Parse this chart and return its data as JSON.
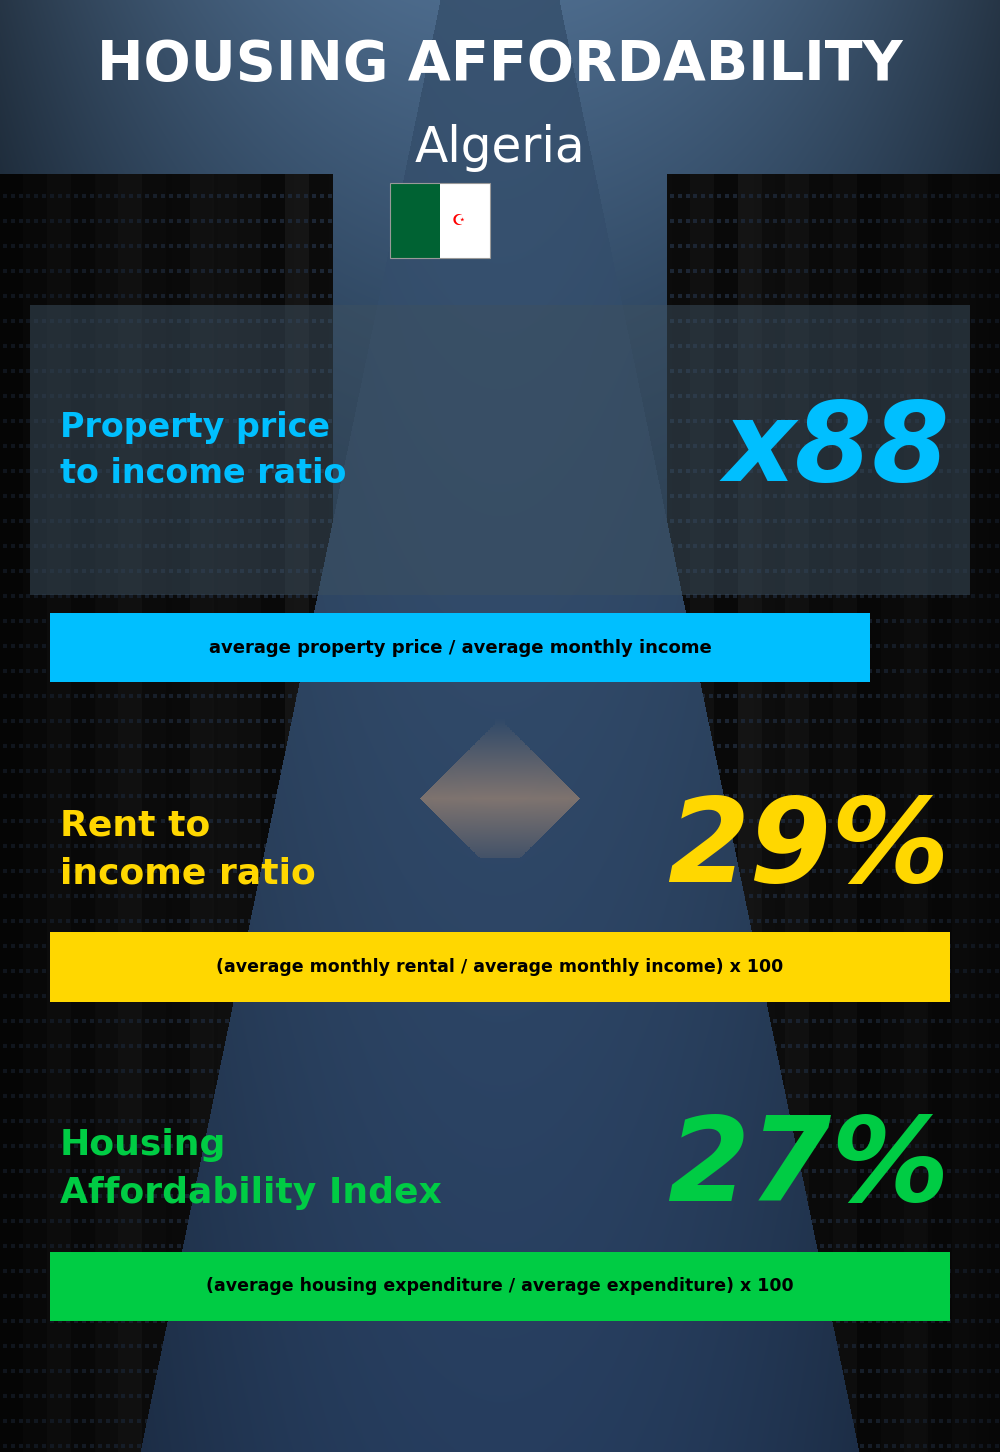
{
  "title_line1": "HOUSING AFFORDABILITY",
  "title_line2": "Algeria",
  "bg_color": "#0d1520",
  "title1_color": "#ffffff",
  "title2_color": "#ffffff",
  "sections": [
    {
      "label": "Property price\nto income ratio",
      "value": "x88",
      "label_color": "#00bfff",
      "value_color": "#00bfff",
      "formula": "average property price / average monthly income",
      "formula_bg": "#00bfff",
      "formula_color": "#000000"
    },
    {
      "label": "Rent to\nincome ratio",
      "value": "29%",
      "label_color": "#ffd700",
      "value_color": "#ffd700",
      "formula": "(average monthly rental / average monthly income) x 100",
      "formula_bg": "#ffd700",
      "formula_color": "#000000"
    },
    {
      "label": "Housing\nAffordability Index",
      "value": "27%",
      "label_color": "#00cc44",
      "value_color": "#00cc44",
      "formula": "(average housing expenditure / average expenditure) x 100",
      "formula_bg": "#00cc44",
      "formula_color": "#000000"
    }
  ],
  "figsize": [
    10.0,
    14.52
  ],
  "dpi": 100
}
